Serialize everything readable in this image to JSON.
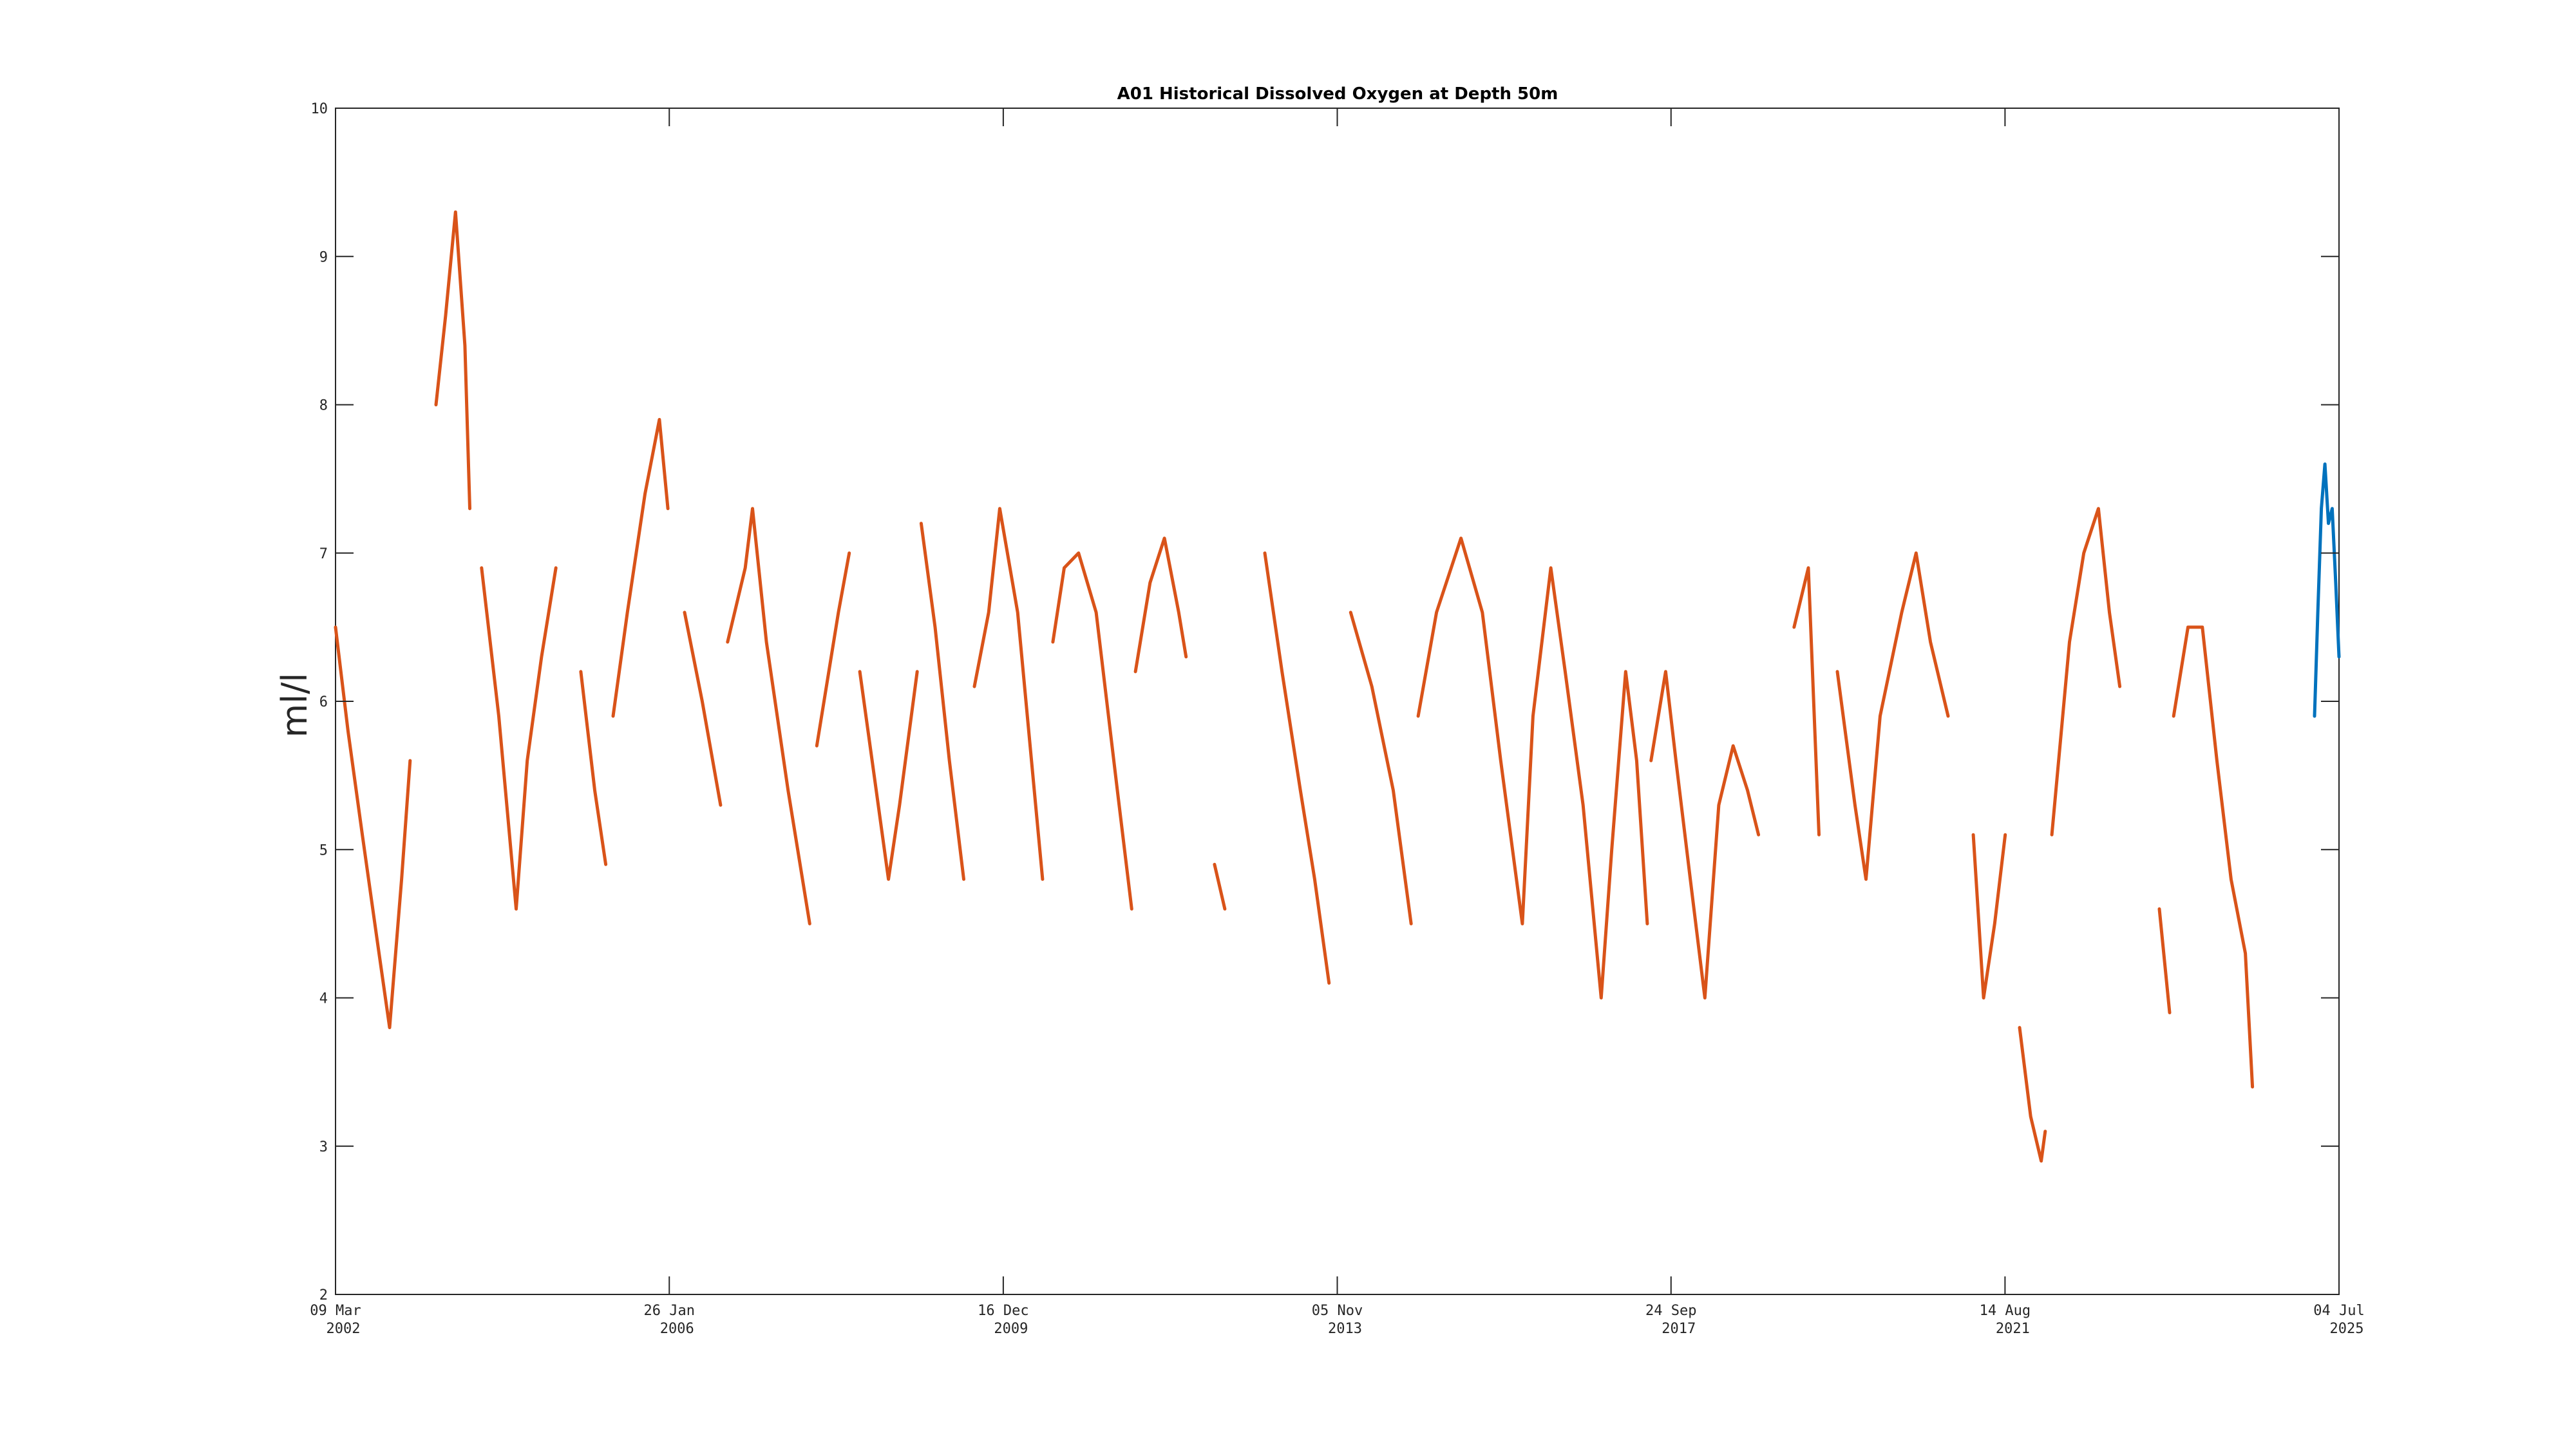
{
  "chart_data": {
    "type": "line",
    "title": "A01 Historical Dissolved Oxygen at Depth 50m",
    "ylabel": "ml/l",
    "xlabel": "",
    "ylim": [
      2,
      10
    ],
    "xlim": [
      "2002-03-09",
      "2025-07-04"
    ],
    "yticks": [
      2,
      3,
      4,
      5,
      6,
      7,
      8,
      9,
      10
    ],
    "xticks": [
      {
        "date": "2002-03-09",
        "line1": "09 Mar",
        "line2": "2002"
      },
      {
        "date": "2006-01-26",
        "line1": "26 Jan",
        "line2": "2006"
      },
      {
        "date": "2009-12-16",
        "line1": "16 Dec",
        "line2": "2009"
      },
      {
        "date": "2013-11-05",
        "line1": "05 Nov",
        "line2": "2013"
      },
      {
        "date": "2017-09-24",
        "line1": "24 Sep",
        "line2": "2017"
      },
      {
        "date": "2021-08-14",
        "line1": "14 Aug",
        "line2": "2021"
      },
      {
        "date": "2025-07-04",
        "line1": "04 Jul",
        "line2": "2025"
      }
    ],
    "grid": false,
    "legend": "none",
    "series": [
      {
        "color": "#d95319",
        "segments": [
          [
            [
              "2002-03-09",
              6.5
            ],
            [
              "2002-05-01",
              5.8
            ],
            [
              "2002-07-01",
              5.1
            ],
            [
              "2002-09-01",
              4.4
            ],
            [
              "2002-10-25",
              3.8
            ],
            [
              "2002-12-15",
              4.8
            ],
            [
              "2003-01-20",
              5.6
            ]
          ],
          [
            [
              "2003-05-10",
              8.0
            ],
            [
              "2003-06-20",
              8.6
            ],
            [
              "2003-08-01",
              9.3
            ],
            [
              "2003-09-10",
              8.4
            ],
            [
              "2003-10-01",
              7.3
            ]
          ],
          [
            [
              "2003-11-20",
              6.9
            ],
            [
              "2004-02-01",
              5.9
            ],
            [
              "2004-04-15",
              4.6
            ],
            [
              "2004-06-01",
              5.6
            ],
            [
              "2004-08-01",
              6.3
            ],
            [
              "2004-10-01",
              6.9
            ]
          ],
          [
            [
              "2005-01-15",
              6.2
            ],
            [
              "2005-03-15",
              5.4
            ],
            [
              "2005-05-01",
              4.9
            ]
          ],
          [
            [
              "2005-06-01",
              5.9
            ],
            [
              "2005-08-01",
              6.6
            ],
            [
              "2005-10-15",
              7.4
            ],
            [
              "2005-12-15",
              7.9
            ],
            [
              "2006-01-20",
              7.3
            ]
          ],
          [
            [
              "2006-04-01",
              6.6
            ],
            [
              "2006-06-15",
              6.0
            ],
            [
              "2006-09-01",
              5.3
            ]
          ],
          [
            [
              "2006-10-01",
              6.4
            ],
            [
              "2006-12-15",
              6.9
            ],
            [
              "2007-01-15",
              7.3
            ],
            [
              "2007-03-15",
              6.4
            ],
            [
              "2007-06-15",
              5.4
            ],
            [
              "2007-09-15",
              4.5
            ]
          ],
          [
            [
              "2007-10-15",
              5.7
            ],
            [
              "2008-01-15",
              6.6
            ],
            [
              "2008-03-01",
              7.0
            ]
          ],
          [
            [
              "2008-04-15",
              6.2
            ],
            [
              "2008-06-15",
              5.5
            ],
            [
              "2008-08-15",
              4.8
            ],
            [
              "2008-10-01",
              5.3
            ],
            [
              "2008-12-15",
              6.2
            ]
          ],
          [
            [
              "2009-01-01",
              7.2
            ],
            [
              "2009-03-01",
              6.5
            ],
            [
              "2009-05-01",
              5.6
            ],
            [
              "2009-07-01",
              4.8
            ]
          ],
          [
            [
              "2009-08-15",
              6.1
            ],
            [
              "2009-10-15",
              6.6
            ],
            [
              "2009-12-01",
              7.3
            ],
            [
              "2010-02-15",
              6.6
            ],
            [
              "2010-04-15",
              5.6
            ],
            [
              "2010-06-01",
              4.8
            ]
          ],
          [
            [
              "2010-07-15",
              6.4
            ],
            [
              "2010-09-01",
              6.9
            ],
            [
              "2010-11-01",
              7.0
            ],
            [
              "2011-01-15",
              6.6
            ],
            [
              "2011-04-15",
              5.4
            ],
            [
              "2011-06-15",
              4.6
            ]
          ],
          [
            [
              "2011-07-01",
              6.2
            ],
            [
              "2011-09-01",
              6.8
            ],
            [
              "2011-11-01",
              7.1
            ],
            [
              "2012-01-01",
              6.6
            ],
            [
              "2012-02-01",
              6.3
            ]
          ],
          [
            [
              "2012-06-01",
              4.9
            ],
            [
              "2012-07-15",
              4.6
            ]
          ],
          [
            [
              "2013-01-01",
              7.0
            ],
            [
              "2013-03-15",
              6.2
            ],
            [
              "2013-06-01",
              5.4
            ],
            [
              "2013-08-01",
              4.8
            ],
            [
              "2013-10-01",
              4.1
            ]
          ],
          [
            [
              "2014-01-01",
              6.6
            ],
            [
              "2014-04-01",
              6.1
            ],
            [
              "2014-07-01",
              5.4
            ],
            [
              "2014-09-15",
              4.5
            ]
          ],
          [
            [
              "2014-10-15",
              5.9
            ],
            [
              "2015-01-01",
              6.6
            ],
            [
              "2015-04-15",
              7.1
            ],
            [
              "2015-07-15",
              6.6
            ],
            [
              "2015-10-01",
              5.6
            ],
            [
              "2016-01-01",
              4.5
            ],
            [
              "2016-02-15",
              5.9
            ],
            [
              "2016-05-01",
              6.9
            ],
            [
              "2016-07-01",
              6.2
            ],
            [
              "2016-09-15",
              5.3
            ],
            [
              "2016-12-01",
              4.0
            ],
            [
              "2017-01-15",
              5.0
            ],
            [
              "2017-03-15",
              6.2
            ],
            [
              "2017-05-01",
              5.6
            ],
            [
              "2017-06-15",
              4.5
            ]
          ],
          [
            [
              "2017-07-01",
              5.6
            ],
            [
              "2017-09-01",
              6.2
            ],
            [
              "2017-10-15",
              5.6
            ],
            [
              "2017-12-15",
              4.8
            ],
            [
              "2018-02-15",
              4.0
            ],
            [
              "2018-04-15",
              5.3
            ],
            [
              "2018-06-15",
              5.7
            ],
            [
              "2018-08-15",
              5.4
            ],
            [
              "2018-10-01",
              5.1
            ]
          ],
          [
            [
              "2019-03-01",
              6.5
            ],
            [
              "2019-05-01",
              6.9
            ],
            [
              "2019-06-15",
              5.1
            ]
          ],
          [
            [
              "2019-09-01",
              6.2
            ],
            [
              "2019-11-15",
              5.3
            ],
            [
              "2020-01-01",
              4.8
            ],
            [
              "2020-03-01",
              5.9
            ],
            [
              "2020-06-01",
              6.6
            ],
            [
              "2020-08-01",
              7.0
            ],
            [
              "2020-10-01",
              6.4
            ],
            [
              "2020-12-15",
              5.9
            ]
          ],
          [
            [
              "2021-04-01",
              5.1
            ],
            [
              "2021-05-15",
              4.0
            ],
            [
              "2021-07-01",
              4.5
            ],
            [
              "2021-08-15",
              5.1
            ]
          ],
          [
            [
              "2021-10-15",
              3.8
            ],
            [
              "2021-12-01",
              3.2
            ],
            [
              "2022-01-15",
              2.9
            ],
            [
              "2022-02-01",
              3.1
            ]
          ],
          [
            [
              "2022-03-01",
              5.1
            ],
            [
              "2022-05-15",
              6.4
            ],
            [
              "2022-07-15",
              7.0
            ],
            [
              "2022-09-15",
              7.3
            ],
            [
              "2022-11-01",
              6.6
            ],
            [
              "2022-12-15",
              6.1
            ]
          ],
          [
            [
              "2023-06-01",
              4.6
            ],
            [
              "2023-07-15",
              3.9
            ]
          ],
          [
            [
              "2023-08-01",
              5.9
            ],
            [
              "2023-10-01",
              6.5
            ],
            [
              "2023-12-01",
              6.5
            ],
            [
              "2024-02-01",
              5.6
            ],
            [
              "2024-04-01",
              4.8
            ],
            [
              "2024-06-01",
              4.3
            ],
            [
              "2024-07-01",
              3.4
            ]
          ]
        ]
      },
      {
        "color": "#0072bd",
        "segments": [
          [
            [
              "2025-03-22",
              5.9
            ],
            [
              "2025-04-05",
              6.6
            ],
            [
              "2025-04-20",
              7.3
            ],
            [
              "2025-05-05",
              7.6
            ],
            [
              "2025-05-20",
              7.2
            ],
            [
              "2025-06-05",
              7.3
            ],
            [
              "2025-06-20",
              6.8
            ],
            [
              "2025-07-04",
              6.3
            ]
          ]
        ]
      }
    ]
  }
}
